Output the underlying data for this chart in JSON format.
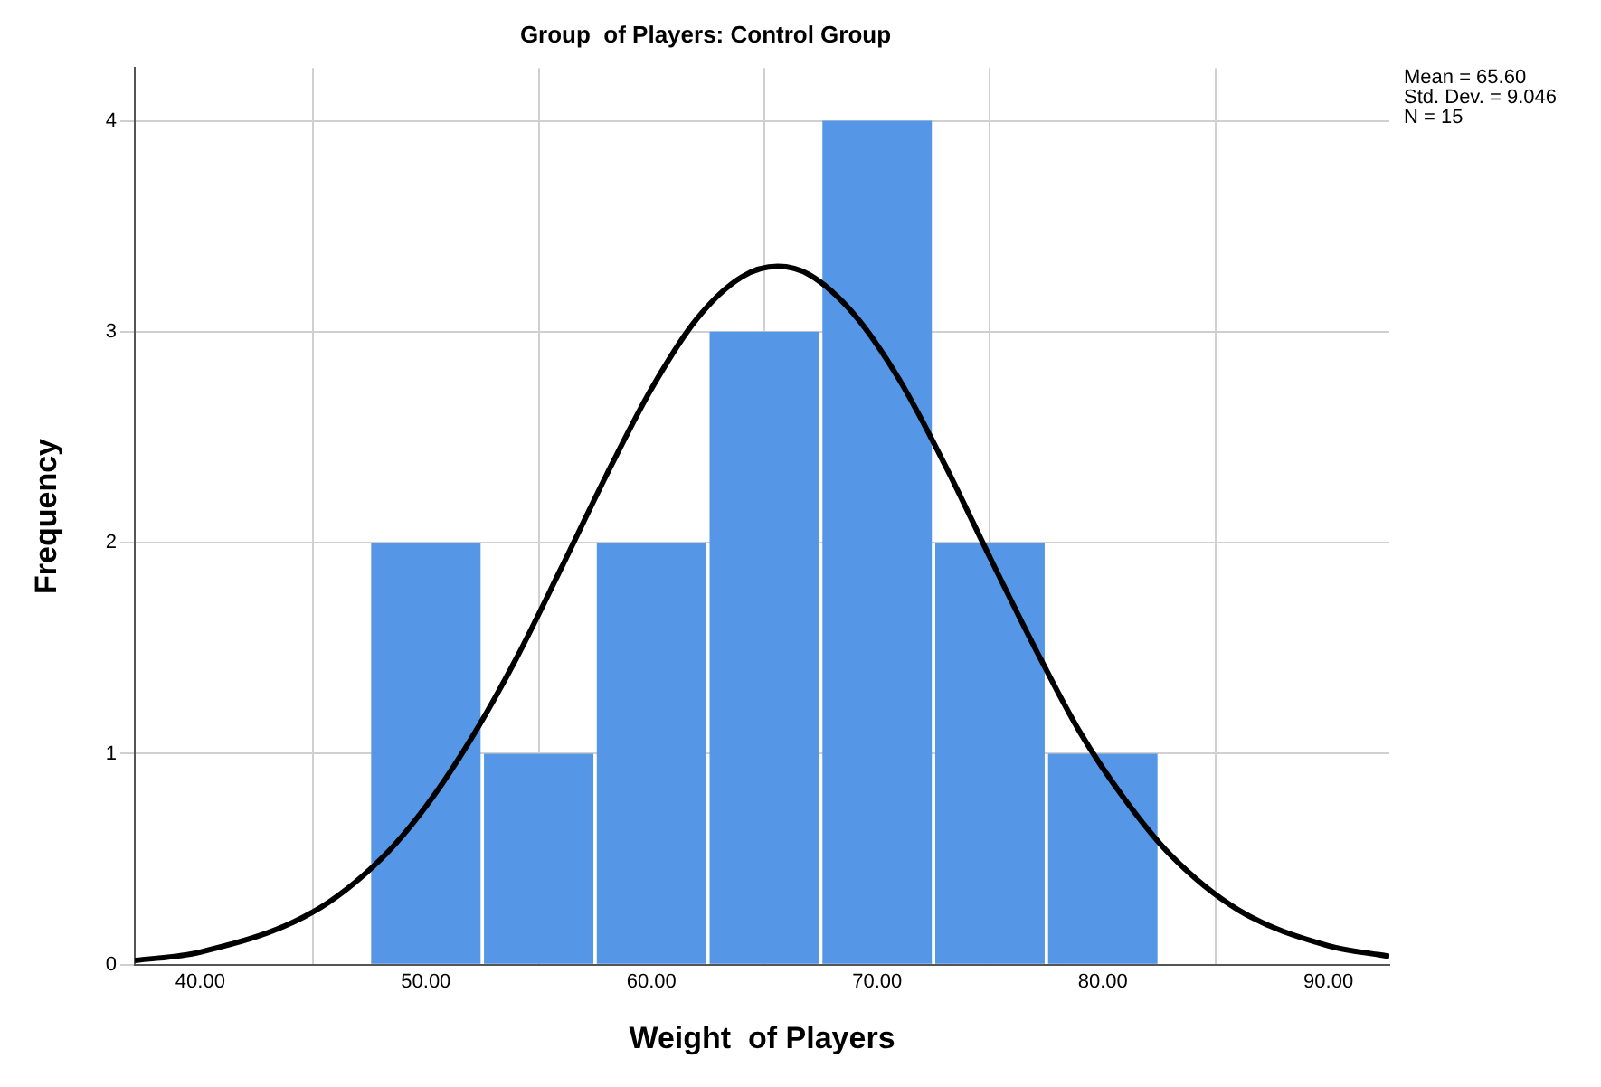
{
  "chart_data": {
    "type": "histogram",
    "title": "Group  of Players: Control Group",
    "xlabel": "Weight  of Players",
    "ylabel": "Frequency",
    "bins": [
      47.5,
      52.5,
      57.5,
      62.5,
      67.5,
      72.5,
      77.5,
      82.5
    ],
    "values": [
      2,
      1,
      2,
      3,
      4,
      2,
      1
    ],
    "color": "#5596e6",
    "series": [
      {
        "type": "line",
        "color": "#000000",
        "x": [
          37.1,
          40,
          45,
          48,
          50,
          52,
          54,
          56,
          58,
          60,
          62,
          64,
          65.6,
          67,
          69,
          71,
          73,
          75,
          77,
          79,
          81,
          83,
          86,
          90,
          92.7
        ],
        "values": [
          0.02,
          0.06,
          0.25,
          0.5,
          0.75,
          1.07,
          1.45,
          1.88,
          2.32,
          2.73,
          3.06,
          3.26,
          3.31,
          3.27,
          3.08,
          2.77,
          2.37,
          1.93,
          1.5,
          1.1,
          0.78,
          0.52,
          0.26,
          0.09,
          0.04
        ]
      }
    ],
    "xlim": [
      37.1,
      92.7
    ],
    "ylim": [
      0,
      4.25
    ],
    "xticks": [
      {
        "value": 40,
        "label": "40.00"
      },
      {
        "value": 50,
        "label": "50.00"
      },
      {
        "value": 60,
        "label": "60.00"
      },
      {
        "value": 70,
        "label": "70.00"
      },
      {
        "value": 80,
        "label": "80.00"
      },
      {
        "value": 90,
        "label": "90.00"
      }
    ],
    "yticks": [
      0,
      1,
      2,
      3,
      4
    ],
    "grid": true,
    "legend": false,
    "annotations": [
      "Mean = 65.60",
      "Std. Dev. = 9.046",
      "N = 15"
    ]
  }
}
